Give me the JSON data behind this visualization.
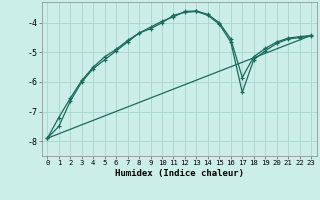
{
  "title": "",
  "xlabel": "Humidex (Indice chaleur)",
  "ylabel": "",
  "bg_color": "#cceee8",
  "grid_color": "#aad4ce",
  "line_color": "#1a6b5a",
  "xlim": [
    -0.5,
    23.5
  ],
  "ylim": [
    -8.5,
    -3.3
  ],
  "yticks": [
    -8,
    -7,
    -6,
    -5,
    -4
  ],
  "xticks": [
    0,
    1,
    2,
    3,
    4,
    5,
    6,
    7,
    8,
    9,
    10,
    11,
    12,
    13,
    14,
    15,
    16,
    17,
    18,
    19,
    20,
    21,
    22,
    23
  ],
  "series1_x": [
    0,
    1,
    2,
    3,
    4,
    5,
    6,
    7,
    8,
    9,
    10,
    11,
    12,
    13,
    14,
    15,
    16,
    17,
    18,
    19,
    20,
    21,
    22,
    23
  ],
  "series1_y": [
    -7.9,
    -7.5,
    -6.65,
    -6.0,
    -5.55,
    -5.25,
    -4.95,
    -4.65,
    -4.35,
    -4.2,
    -4.0,
    -3.75,
    -3.65,
    -3.62,
    -3.75,
    -4.05,
    -4.65,
    -6.35,
    -5.25,
    -4.95,
    -4.7,
    -4.55,
    -4.5,
    -4.45
  ],
  "series2_x": [
    0,
    1,
    2,
    3,
    4,
    5,
    6,
    7,
    8,
    9,
    10,
    11,
    12,
    13,
    14,
    15,
    16,
    17,
    18,
    19,
    20,
    21,
    22,
    23
  ],
  "series2_y": [
    -7.9,
    -7.2,
    -6.55,
    -5.95,
    -5.5,
    -5.15,
    -4.9,
    -4.6,
    -4.35,
    -4.15,
    -3.95,
    -3.8,
    -3.62,
    -3.6,
    -3.72,
    -4.0,
    -4.55,
    -5.85,
    -5.15,
    -4.87,
    -4.65,
    -4.52,
    -4.47,
    -4.43
  ],
  "series3_x": [
    0,
    23
  ],
  "series3_y": [
    -7.9,
    -4.43
  ]
}
